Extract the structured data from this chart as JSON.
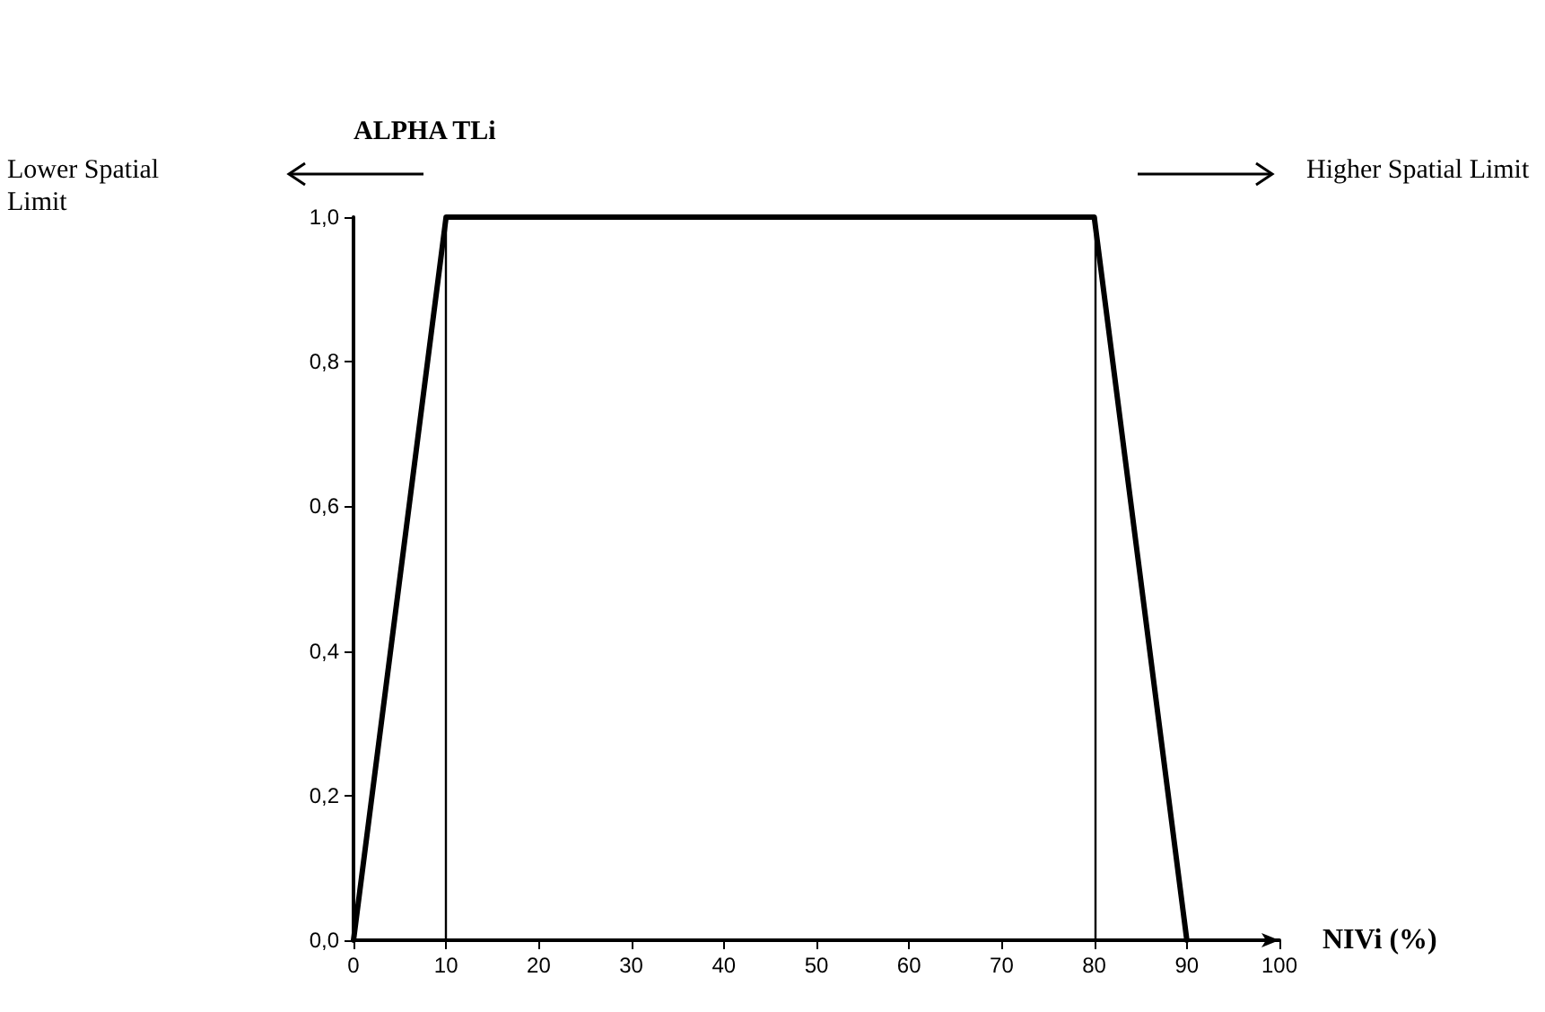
{
  "chart_data": {
    "type": "line",
    "xlabel": "NIVi (%)",
    "ylabel": "ALPHA TLi",
    "x": [
      0,
      10,
      80,
      90
    ],
    "series": [
      {
        "color": "#000000",
        "values": [
          0,
          1,
          1,
          0
        ]
      }
    ],
    "xlim": [
      0,
      100
    ],
    "xticks": [
      0,
      10,
      20,
      30,
      40,
      50,
      60,
      70,
      80,
      90,
      100
    ],
    "ylim": [
      0,
      1
    ],
    "yticks": [
      {
        "value": 0,
        "label": "0,0"
      },
      {
        "value": 0.2,
        "label": "0,2"
      },
      {
        "value": 0.4,
        "label": "0,4"
      },
      {
        "value": 0.6,
        "label": "0,6"
      },
      {
        "value": 0.8,
        "label": "0,8"
      },
      {
        "value": 1,
        "label": "1,0"
      }
    ],
    "ref_lines": [
      {
        "axis": "x",
        "value": 10,
        "color": "#000000"
      },
      {
        "axis": "x",
        "value": 80,
        "color": "#000000"
      }
    ],
    "annotations": [
      "Lower Spatial Limit",
      "Higher Spatial Limit"
    ],
    "grid": false,
    "marker": "none",
    "line_style": "solid"
  }
}
